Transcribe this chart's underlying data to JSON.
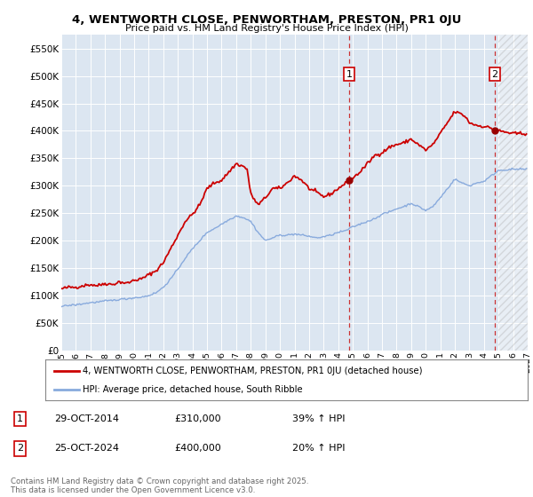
{
  "title1": "4, WENTWORTH CLOSE, PENWORTHAM, PRESTON, PR1 0JU",
  "title2": "Price paid vs. HM Land Registry's House Price Index (HPI)",
  "ylim": [
    0,
    575000
  ],
  "yticks": [
    0,
    50000,
    100000,
    150000,
    200000,
    250000,
    300000,
    350000,
    400000,
    450000,
    500000,
    550000
  ],
  "ytick_labels": [
    "£0",
    "£50K",
    "£100K",
    "£150K",
    "£200K",
    "£250K",
    "£300K",
    "£350K",
    "£400K",
    "£450K",
    "£500K",
    "£550K"
  ],
  "plot_bg_color": "#dce6f1",
  "grid_color": "#ffffff",
  "red_line_color": "#cc0000",
  "blue_line_color": "#88aadd",
  "marker1_value": 310000,
  "marker2_value": 400000,
  "legend_label_red": "4, WENTWORTH CLOSE, PENWORTHAM, PRESTON, PR1 0JU (detached house)",
  "legend_label_blue": "HPI: Average price, detached house, South Ribble",
  "annotation1_date": "29-OCT-2014",
  "annotation1_price": "£310,000",
  "annotation1_hpi": "39% ↑ HPI",
  "annotation2_date": "25-OCT-2024",
  "annotation2_price": "£400,000",
  "annotation2_hpi": "20% ↑ HPI",
  "footnote": "Contains HM Land Registry data © Crown copyright and database right 2025.\nThis data is licensed under the Open Government Licence v3.0.",
  "red_anchors_x": [
    1995.0,
    1995.5,
    1996.0,
    1996.5,
    1997.0,
    1997.5,
    1998.0,
    1998.5,
    1999.0,
    1999.5,
    2000.0,
    2000.5,
    2001.0,
    2001.5,
    2002.0,
    2002.5,
    2003.0,
    2003.5,
    2004.0,
    2004.5,
    2005.0,
    2005.5,
    2006.0,
    2006.5,
    2007.0,
    2007.5,
    2007.75,
    2008.0,
    2008.5,
    2009.0,
    2009.5,
    2010.0,
    2010.5,
    2011.0,
    2011.5,
    2012.0,
    2012.5,
    2013.0,
    2013.5,
    2014.0,
    2014.83,
    2015.5,
    2016.0,
    2016.5,
    2017.0,
    2017.5,
    2018.0,
    2018.5,
    2019.0,
    2019.5,
    2020.0,
    2020.5,
    2021.0,
    2021.5,
    2022.0,
    2022.5,
    2022.75,
    2023.0,
    2023.5,
    2024.0,
    2024.5,
    2024.83,
    2025.0,
    2026.0
  ],
  "red_anchors_y": [
    112000,
    115000,
    115000,
    118000,
    120000,
    118000,
    122000,
    120000,
    125000,
    122000,
    128000,
    130000,
    138000,
    145000,
    160000,
    185000,
    210000,
    235000,
    248000,
    265000,
    295000,
    305000,
    310000,
    325000,
    340000,
    335000,
    330000,
    285000,
    265000,
    278000,
    295000,
    295000,
    305000,
    318000,
    310000,
    295000,
    288000,
    280000,
    285000,
    295000,
    310000,
    325000,
    340000,
    355000,
    360000,
    370000,
    375000,
    378000,
    385000,
    375000,
    365000,
    375000,
    395000,
    415000,
    435000,
    430000,
    425000,
    415000,
    410000,
    408000,
    405000,
    400000,
    400000,
    395000
  ],
  "blue_anchors_x": [
    1995.0,
    1995.5,
    1996.0,
    1996.5,
    1997.0,
    1997.5,
    1998.0,
    1998.5,
    1999.0,
    1999.5,
    2000.0,
    2000.5,
    2001.0,
    2001.5,
    2002.0,
    2002.5,
    2003.0,
    2003.5,
    2004.0,
    2004.5,
    2005.0,
    2005.5,
    2006.0,
    2006.5,
    2007.0,
    2007.5,
    2008.0,
    2008.5,
    2009.0,
    2009.5,
    2010.0,
    2010.5,
    2011.0,
    2011.5,
    2012.0,
    2012.5,
    2013.0,
    2013.5,
    2014.0,
    2014.5,
    2015.0,
    2015.5,
    2016.0,
    2016.5,
    2017.0,
    2017.5,
    2018.0,
    2018.5,
    2019.0,
    2019.5,
    2020.0,
    2020.5,
    2021.0,
    2021.5,
    2022.0,
    2022.5,
    2023.0,
    2023.5,
    2024.0,
    2024.5,
    2025.0,
    2026.0
  ],
  "blue_anchors_y": [
    80000,
    82000,
    83000,
    85000,
    87000,
    88000,
    90000,
    91000,
    93000,
    94000,
    96000,
    97000,
    100000,
    105000,
    115000,
    130000,
    148000,
    168000,
    185000,
    200000,
    215000,
    222000,
    230000,
    238000,
    245000,
    242000,
    235000,
    215000,
    200000,
    205000,
    210000,
    210000,
    212000,
    210000,
    208000,
    205000,
    207000,
    210000,
    215000,
    218000,
    225000,
    230000,
    235000,
    240000,
    248000,
    252000,
    258000,
    262000,
    268000,
    262000,
    255000,
    262000,
    278000,
    295000,
    312000,
    305000,
    300000,
    305000,
    308000,
    318000,
    328000,
    330000
  ]
}
